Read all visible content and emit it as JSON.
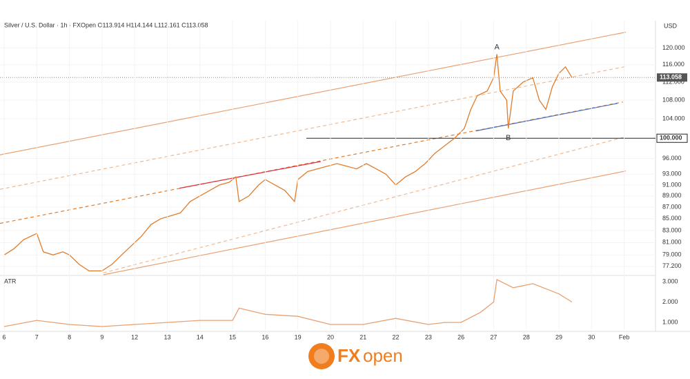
{
  "chart_data": [
    {
      "type": "line",
      "title": "Silver / U.S. Dollar · 1h · FXOpen  O113.914  H114.144  L112.161  C113.058",
      "y_axis_label": "USD",
      "log_scale": true,
      "grid": true,
      "xlim": [
        -0.127,
        19.96
      ],
      "ylim": [
        75.9,
        126.8
      ],
      "yticks": [
        {
          "value": 77.2,
          "label": "77.200"
        },
        {
          "value": 79,
          "label": "79.000"
        },
        {
          "value": 81,
          "label": "81.000"
        },
        {
          "value": 83,
          "label": "83.000"
        },
        {
          "value": 85,
          "label": "85.000"
        },
        {
          "value": 87,
          "label": "87.000"
        },
        {
          "value": 89,
          "label": "89.000"
        },
        {
          "value": 91,
          "label": "91.000"
        },
        {
          "value": 93,
          "label": "93.000"
        },
        {
          "value": 96,
          "label": "96.000"
        },
        {
          "value": 104,
          "label": "104.000"
        },
        {
          "value": 108,
          "label": "108.000"
        },
        {
          "value": 112,
          "label": "112.000"
        },
        {
          "value": 116,
          "label": "116.000"
        },
        {
          "value": 120,
          "label": "120.000"
        }
      ],
      "series": [
        {
          "color": "#e07b2a",
          "x": [
            0,
            0.3,
            0.6,
            1.0,
            1.2,
            1.5,
            1.8,
            2.0,
            2.3,
            2.6,
            3.0,
            3.3,
            3.6,
            3.9,
            4.2,
            4.5,
            4.8,
            5.1,
            5.4,
            5.7,
            6.0,
            6.3,
            6.6,
            6.9,
            7.1,
            7.2,
            7.5,
            7.8,
            8.0,
            8.3,
            8.6,
            8.9,
            9.0,
            9.3,
            9.6,
            9.9,
            10.2,
            10.5,
            10.8,
            11.1,
            11.4,
            11.7,
            12.0,
            12.3,
            12.6,
            12.9,
            13.2,
            13.5,
            13.8,
            14.1,
            14.3,
            14.5,
            14.8,
            15.0,
            15.1,
            15.2,
            15.4,
            15.45,
            15.6,
            15.9,
            16.2,
            16.4,
            16.6,
            16.8,
            17.0,
            17.2,
            17.4
          ],
          "values": [
            79,
            80,
            81.5,
            82.5,
            79.5,
            79,
            79.5,
            79,
            77.5,
            76.5,
            76.5,
            77.5,
            79,
            80.5,
            82,
            84,
            85,
            85.5,
            86,
            88,
            89,
            90,
            91,
            91.5,
            92.5,
            88,
            89,
            91,
            92,
            91,
            90,
            88,
            92,
            93.5,
            94,
            94.5,
            95,
            94.5,
            94,
            95,
            94,
            93,
            91,
            92.5,
            93.5,
            95,
            97,
            98.5,
            100,
            102,
            106,
            109,
            110,
            113,
            118.5,
            110,
            108,
            102,
            110,
            112,
            113,
            108,
            106,
            111,
            114,
            115.5,
            113.058
          ]
        }
      ],
      "trendlines": [
        {
          "color": "#e8a070",
          "dash": false,
          "x": [
            -0.13,
            19.05
          ],
          "values": [
            96.7,
            123.9
          ]
        },
        {
          "color": "#f0b890",
          "dash": true,
          "x": [
            -0.13,
            19.05
          ],
          "values": [
            90.2,
            115.6
          ]
        },
        {
          "color": "#e07b2a",
          "dash": true,
          "x": [
            -0.13,
            18.96
          ],
          "values": [
            84.2,
            107.6
          ]
        },
        {
          "color": "#f0b890",
          "dash": true,
          "x": [
            3.04,
            19.05
          ],
          "values": [
            76.2,
            100.3
          ]
        },
        {
          "color": "#e8a070",
          "dash": false,
          "x": [
            3.04,
            19.05
          ],
          "values": [
            75.9,
            93.6
          ]
        },
        {
          "color": "#e0303a",
          "dash": false,
          "x": [
            5.37,
            9.7
          ],
          "values": [
            90.4,
            95.4
          ]
        },
        {
          "color": "#4a6fc0",
          "dash": false,
          "x": [
            14.46,
            18.8
          ],
          "values": [
            101.5,
            107.3
          ]
        }
      ],
      "level": {
        "value": 100,
        "label": "100.000",
        "x": 9.26
      },
      "last_price": {
        "value": 113.058,
        "label": "113.058"
      },
      "annotations": [
        "A",
        "B"
      ]
    },
    {
      "type": "line",
      "title": "ATR",
      "xlim": [
        -0.127,
        19.96
      ],
      "ylim": [
        0.63,
        3.27
      ],
      "yticks": [
        {
          "value": 1,
          "label": "1.000"
        },
        {
          "value": 2,
          "label": "2.000"
        },
        {
          "value": 3,
          "label": "3.000"
        }
      ],
      "xticks": [
        {
          "value": 0,
          "label": "6"
        },
        {
          "value": 1,
          "label": "7"
        },
        {
          "value": 2,
          "label": "8"
        },
        {
          "value": 3,
          "label": "9"
        },
        {
          "value": 4,
          "label": "12"
        },
        {
          "value": 5,
          "label": "13"
        },
        {
          "value": 6,
          "label": "14"
        },
        {
          "value": 7,
          "label": "15"
        },
        {
          "value": 8,
          "label": "16"
        },
        {
          "value": 9,
          "label": "19"
        },
        {
          "value": 10,
          "label": "20"
        },
        {
          "value": 11,
          "label": "21"
        },
        {
          "value": 12,
          "label": "22"
        },
        {
          "value": 13,
          "label": "23"
        },
        {
          "value": 14,
          "label": "26"
        },
        {
          "value": 15,
          "label": "27"
        },
        {
          "value": 16,
          "label": "28"
        },
        {
          "value": 17,
          "label": "29"
        },
        {
          "value": 18,
          "label": "30"
        },
        {
          "value": 19,
          "label": "Feb"
        }
      ],
      "series": [
        {
          "color": "#e8a070",
          "x": [
            0,
            1,
            2,
            3,
            4,
            5,
            6,
            7,
            7.2,
            8,
            9,
            10,
            11,
            12,
            13,
            13.5,
            14,
            14.6,
            15,
            15.1,
            15.6,
            16.2,
            17,
            17.4
          ],
          "values": [
            0.8,
            1.1,
            0.9,
            0.8,
            0.9,
            1.0,
            1.1,
            1.1,
            1.7,
            1.4,
            1.3,
            0.9,
            0.9,
            1.2,
            0.9,
            1.0,
            1.0,
            1.5,
            2.0,
            3.1,
            2.7,
            2.9,
            2.4,
            2.0
          ]
        }
      ]
    }
  ]
}
